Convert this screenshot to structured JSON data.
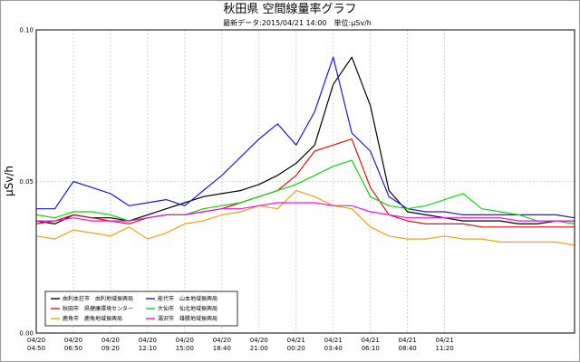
{
  "chart_data": {
    "type": "line",
    "title": "秋田県 空間線量率グラフ",
    "subtitle": "最新データ:2015/04/21 14:00　単位:μSv/h",
    "ylabel": "μSv/h",
    "xlabel": "",
    "ylim": [
      0,
      0.1
    ],
    "yticks": [
      {
        "value": 0,
        "label": "0.00"
      },
      {
        "value": 0.05,
        "label": "0.05"
      },
      {
        "value": 0.1,
        "label": "0.10"
      }
    ],
    "x_count": 30,
    "xticks": [
      {
        "x": 0,
        "date": "04/20",
        "time": "04:50"
      },
      {
        "x": 2,
        "date": "04/20",
        "time": "06:50"
      },
      {
        "x": 4,
        "date": "04/20",
        "time": "09:20"
      },
      {
        "x": 6,
        "date": "04/20",
        "time": "12:10"
      },
      {
        "x": 8,
        "date": "04/20",
        "time": "15:00"
      },
      {
        "x": 10,
        "date": "04/20",
        "time": "18:40"
      },
      {
        "x": 12,
        "date": "04/20",
        "time": "21:00"
      },
      {
        "x": 14,
        "date": "04/21",
        "time": "00:20"
      },
      {
        "x": 16,
        "date": "04/21",
        "time": "03:40"
      },
      {
        "x": 18,
        "date": "04/21",
        "time": "06:10"
      },
      {
        "x": 20,
        "date": "04/21",
        "time": "08:40"
      },
      {
        "x": 22,
        "date": "04/21",
        "time": "11:20"
      }
    ],
    "grid": true,
    "legend_position": "bottom-left",
    "series": [
      {
        "name": "由利本荘市　由利地域振興局",
        "color": "#000000",
        "values": [
          0.037,
          0.036,
          0.039,
          0.038,
          0.038,
          0.037,
          0.039,
          0.041,
          0.043,
          0.045,
          0.046,
          0.047,
          0.049,
          0.052,
          0.056,
          0.062,
          0.082,
          0.091,
          0.075,
          0.047,
          0.04,
          0.039,
          0.038,
          0.037,
          0.037,
          0.037,
          0.036,
          0.036,
          0.037,
          0.037
        ]
      },
      {
        "name": "能代市　山本地域振興局",
        "color": "#1a1adc",
        "values": [
          0.041,
          0.041,
          0.05,
          0.048,
          0.046,
          0.042,
          0.043,
          0.044,
          0.042,
          0.047,
          0.052,
          0.058,
          0.064,
          0.069,
          0.062,
          0.073,
          0.091,
          0.066,
          0.06,
          0.045,
          0.041,
          0.04,
          0.04,
          0.039,
          0.039,
          0.039,
          0.039,
          0.039,
          0.039,
          0.038
        ]
      },
      {
        "name": "秋田市　県健康環境センター",
        "color": "#dd1111",
        "values": [
          0.036,
          0.037,
          0.039,
          0.038,
          0.037,
          0.036,
          0.038,
          0.039,
          0.039,
          0.04,
          0.041,
          0.043,
          0.045,
          0.047,
          0.052,
          0.06,
          0.062,
          0.064,
          0.048,
          0.039,
          0.037,
          0.036,
          0.036,
          0.036,
          0.035,
          0.035,
          0.035,
          0.035,
          0.035,
          0.035
        ]
      },
      {
        "name": "大仙市　仙北地域振興局",
        "color": "#11d411",
        "values": [
          0.039,
          0.038,
          0.04,
          0.04,
          0.039,
          0.037,
          0.038,
          0.039,
          0.039,
          0.041,
          0.042,
          0.043,
          0.045,
          0.047,
          0.049,
          0.052,
          0.055,
          0.057,
          0.045,
          0.042,
          0.041,
          0.042,
          0.044,
          0.046,
          0.041,
          0.04,
          0.039,
          0.037,
          0.037,
          0.036
        ]
      },
      {
        "name": "鹿角市　鹿角地域振興局",
        "color": "#f0a010",
        "values": [
          0.032,
          0.031,
          0.034,
          0.033,
          0.032,
          0.035,
          0.031,
          0.033,
          0.036,
          0.037,
          0.039,
          0.04,
          0.042,
          0.041,
          0.047,
          0.045,
          0.042,
          0.041,
          0.035,
          0.032,
          0.031,
          0.031,
          0.032,
          0.031,
          0.031,
          0.03,
          0.03,
          0.03,
          0.03,
          0.029
        ]
      },
      {
        "name": "湯沢市　雄勝地域振興局",
        "color": "#ee11ee",
        "values": [
          0.037,
          0.037,
          0.038,
          0.037,
          0.037,
          0.037,
          0.038,
          0.039,
          0.039,
          0.04,
          0.041,
          0.041,
          0.042,
          0.043,
          0.043,
          0.043,
          0.042,
          0.042,
          0.04,
          0.039,
          0.038,
          0.038,
          0.038,
          0.038,
          0.038,
          0.038,
          0.037,
          0.037,
          0.037,
          0.037
        ]
      }
    ]
  }
}
